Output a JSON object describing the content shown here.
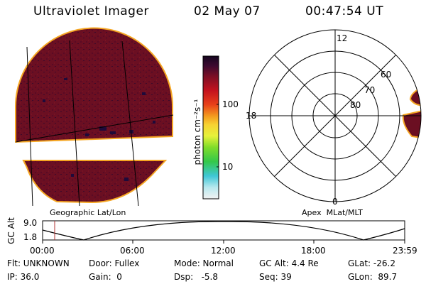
{
  "header": {
    "instrument": "Ultraviolet Imager",
    "date": "02 May 07",
    "time": "00:47:54 UT"
  },
  "colorbar": {
    "unit_label": "photon cm⁻²s⁻¹",
    "ticks": [
      "100",
      "10"
    ]
  },
  "geo_panel": {
    "caption": "Geographic Lat/Lon"
  },
  "polar_panel": {
    "caption": "Apex  MLat/MLT",
    "mlt_labels": [
      "12",
      "18",
      "0"
    ],
    "lat_labels": [
      "60",
      "70",
      "80"
    ]
  },
  "altitude_plot": {
    "ylabel": "GC Alt",
    "yticks": [
      "9.0",
      "1.8"
    ],
    "xticks": [
      "00:00",
      "06:00",
      "12:00",
      "18:00",
      "23:59"
    ]
  },
  "info": {
    "flt": "Flt: UNKNOWN",
    "ip": "IP: 36.0",
    "door": "Door: Fullex",
    "gain": "Gain:  0",
    "mode": "Mode: Normal",
    "dsp": "Dsp:   -5.8",
    "gcalt": "GC Alt: 4.4 Re",
    "seq": "Seq: 39",
    "glat": "GLat: -26.2",
    "glon": "GLon:  89.7"
  },
  "colors": {
    "image_base": "#6b0f22",
    "image_edge": "#f5a623",
    "image_dark": "#2a0a2e",
    "marker": "#b03030"
  }
}
